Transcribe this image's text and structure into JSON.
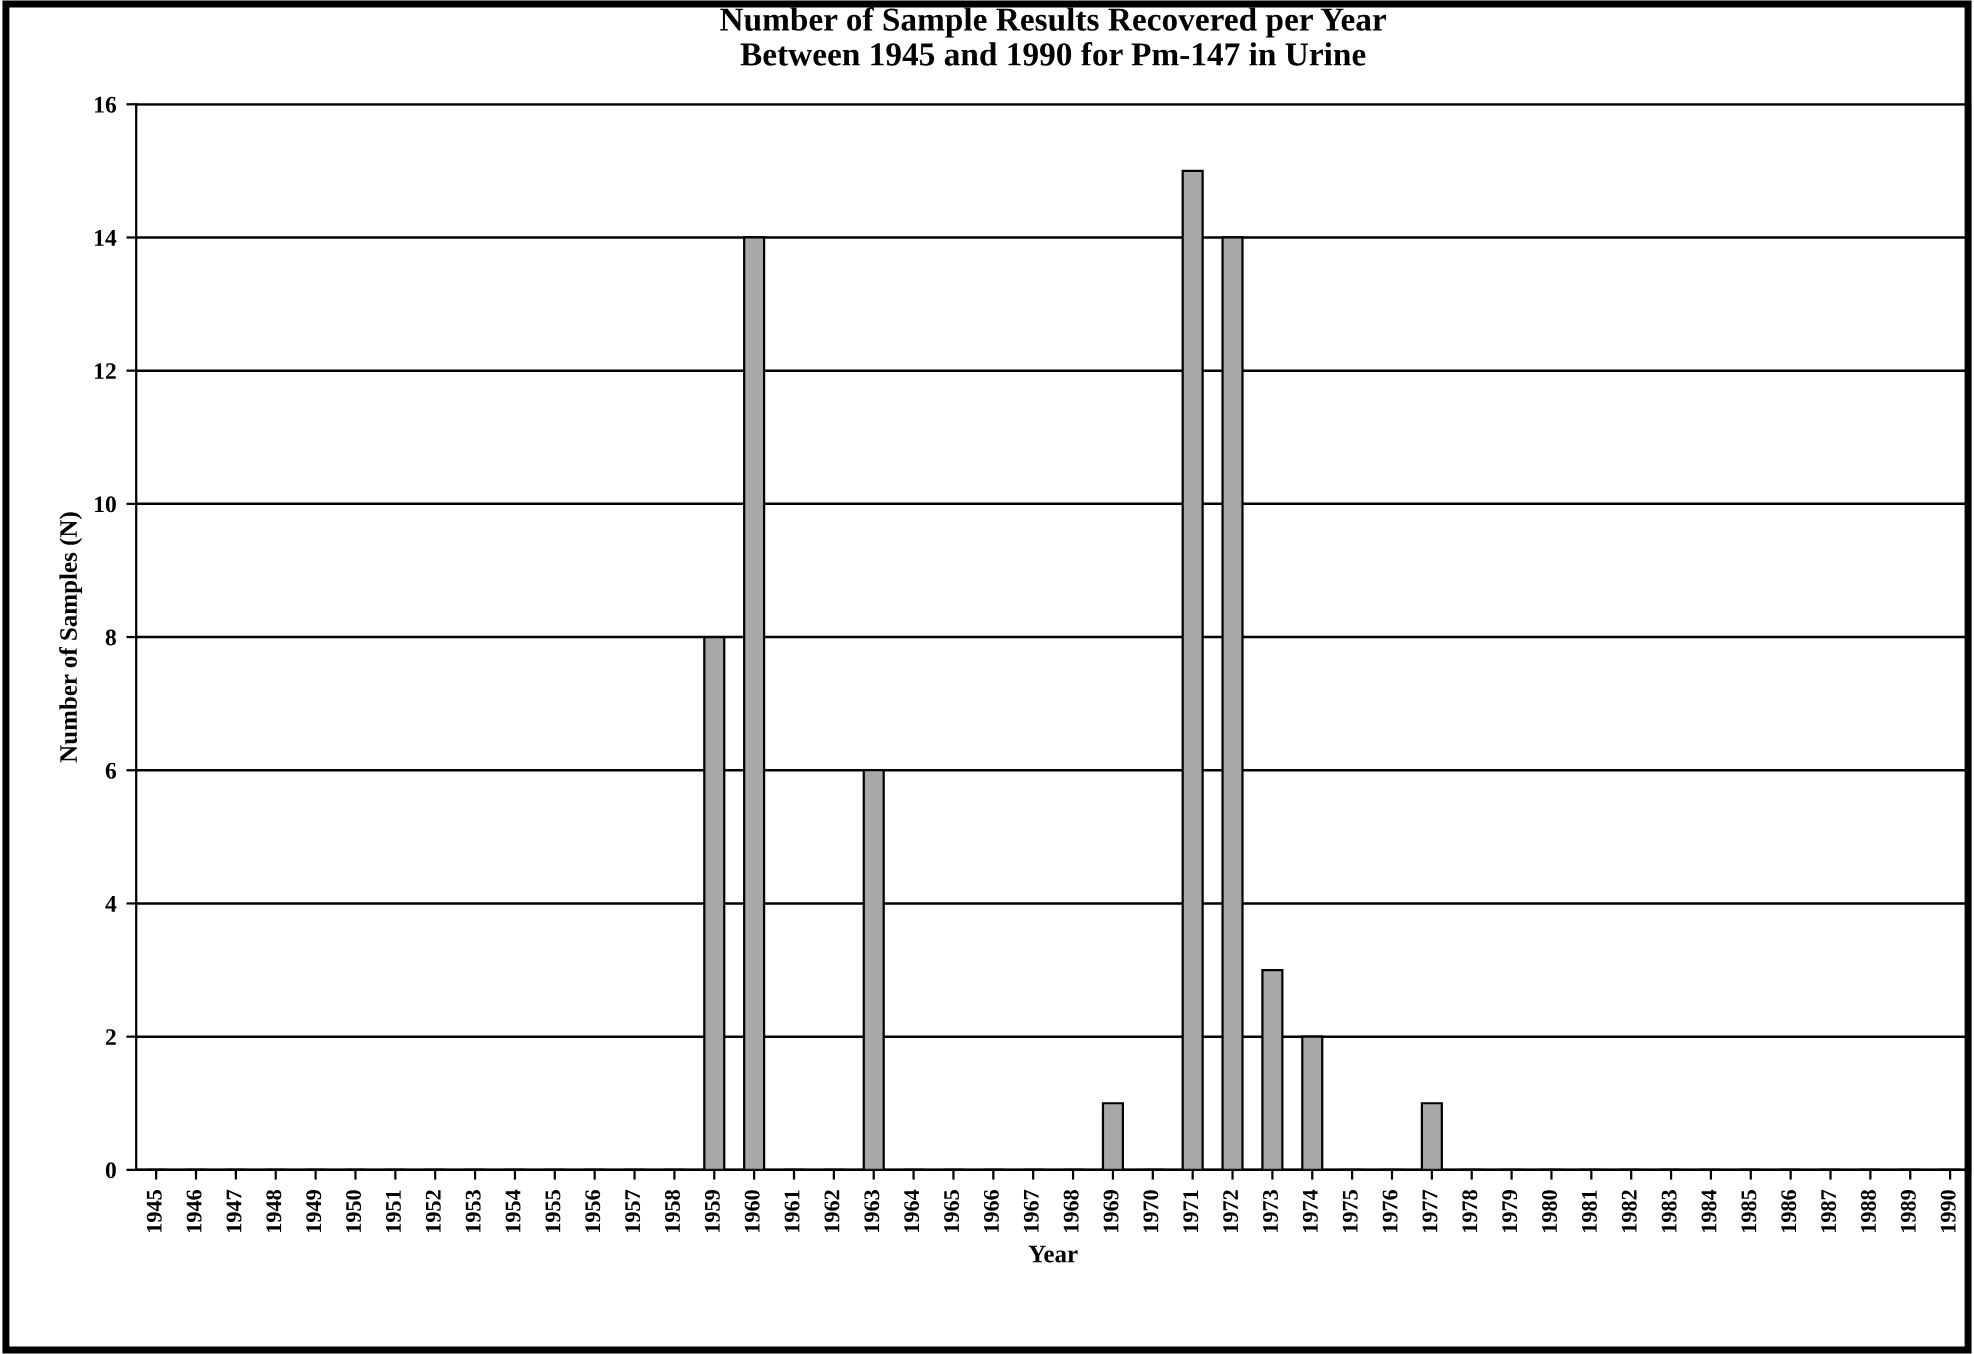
{
  "chart_data": {
    "type": "bar",
    "title": "Number of Sample Results Recovered per Year\nBetween 1945 and 1990 for Pm-147 in Urine",
    "xlabel": "Year",
    "ylabel": "Number of Samples (N)",
    "categories": [
      "1945",
      "1946",
      "1947",
      "1948",
      "1949",
      "1950",
      "1951",
      "1952",
      "1953",
      "1954",
      "1955",
      "1956",
      "1957",
      "1958",
      "1959",
      "1960",
      "1961",
      "1962",
      "1963",
      "1964",
      "1965",
      "1966",
      "1967",
      "1968",
      "1969",
      "1970",
      "1971",
      "1972",
      "1973",
      "1974",
      "1975",
      "1976",
      "1977",
      "1978",
      "1979",
      "1980",
      "1981",
      "1982",
      "1983",
      "1984",
      "1985",
      "1986",
      "1987",
      "1988",
      "1989",
      "1990"
    ],
    "values": [
      0,
      0,
      0,
      0,
      0,
      0,
      0,
      0,
      0,
      0,
      0,
      0,
      0,
      0,
      8,
      14,
      0,
      0,
      6,
      0,
      0,
      0,
      0,
      0,
      1,
      0,
      15,
      14,
      3,
      2,
      0,
      0,
      1,
      0,
      0,
      0,
      0,
      0,
      0,
      0,
      0,
      0,
      0,
      0,
      0,
      0
    ],
    "color": "#a8a8a8",
    "ylim": [
      0,
      16
    ],
    "yticks": [
      0,
      2,
      4,
      6,
      8,
      10,
      12,
      14,
      16
    ],
    "grid": "y",
    "legend": false
  }
}
